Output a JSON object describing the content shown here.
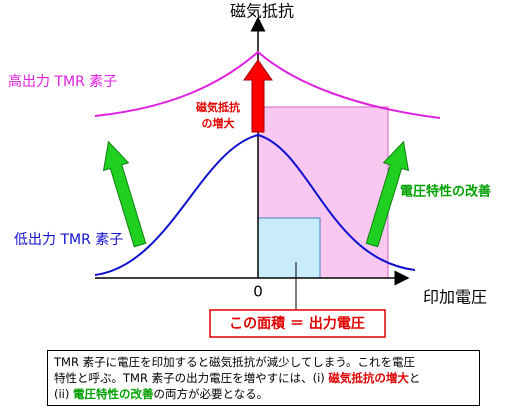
{
  "axes": {
    "y_label": "磁気抵抗",
    "x_label": "印加電圧",
    "origin": "0"
  },
  "curves": {
    "high": "高出力 TMR 素子",
    "low": "低出力 TMR 素子"
  },
  "annotations": {
    "resistance_increase": [
      "磁気抵抗",
      "の増大"
    ],
    "voltage_improve": "電圧特性の改善",
    "area": "この面積 ＝ 出力電圧"
  },
  "caption": {
    "lines": [
      [
        {
          "text": "TMR 素子に電圧を印加すると磁気抵抗が減少してしまう。これを電圧",
          "color": "#000000"
        }
      ],
      [
        {
          "text": "特性と呼ぶ。TMR 素子の出力電圧を増やすには、(i) ",
          "color": "#000000"
        },
        {
          "text": "磁気抵抗の増大",
          "color": "#e00000"
        },
        {
          "text": "と",
          "color": "#000000"
        }
      ],
      [
        {
          "text": "(ii) ",
          "color": "#000000"
        },
        {
          "text": "電圧特性の改善",
          "color": "#00a000"
        },
        {
          "text": "の両方が必要となる。",
          "color": "#000000"
        }
      ]
    ]
  }
}
